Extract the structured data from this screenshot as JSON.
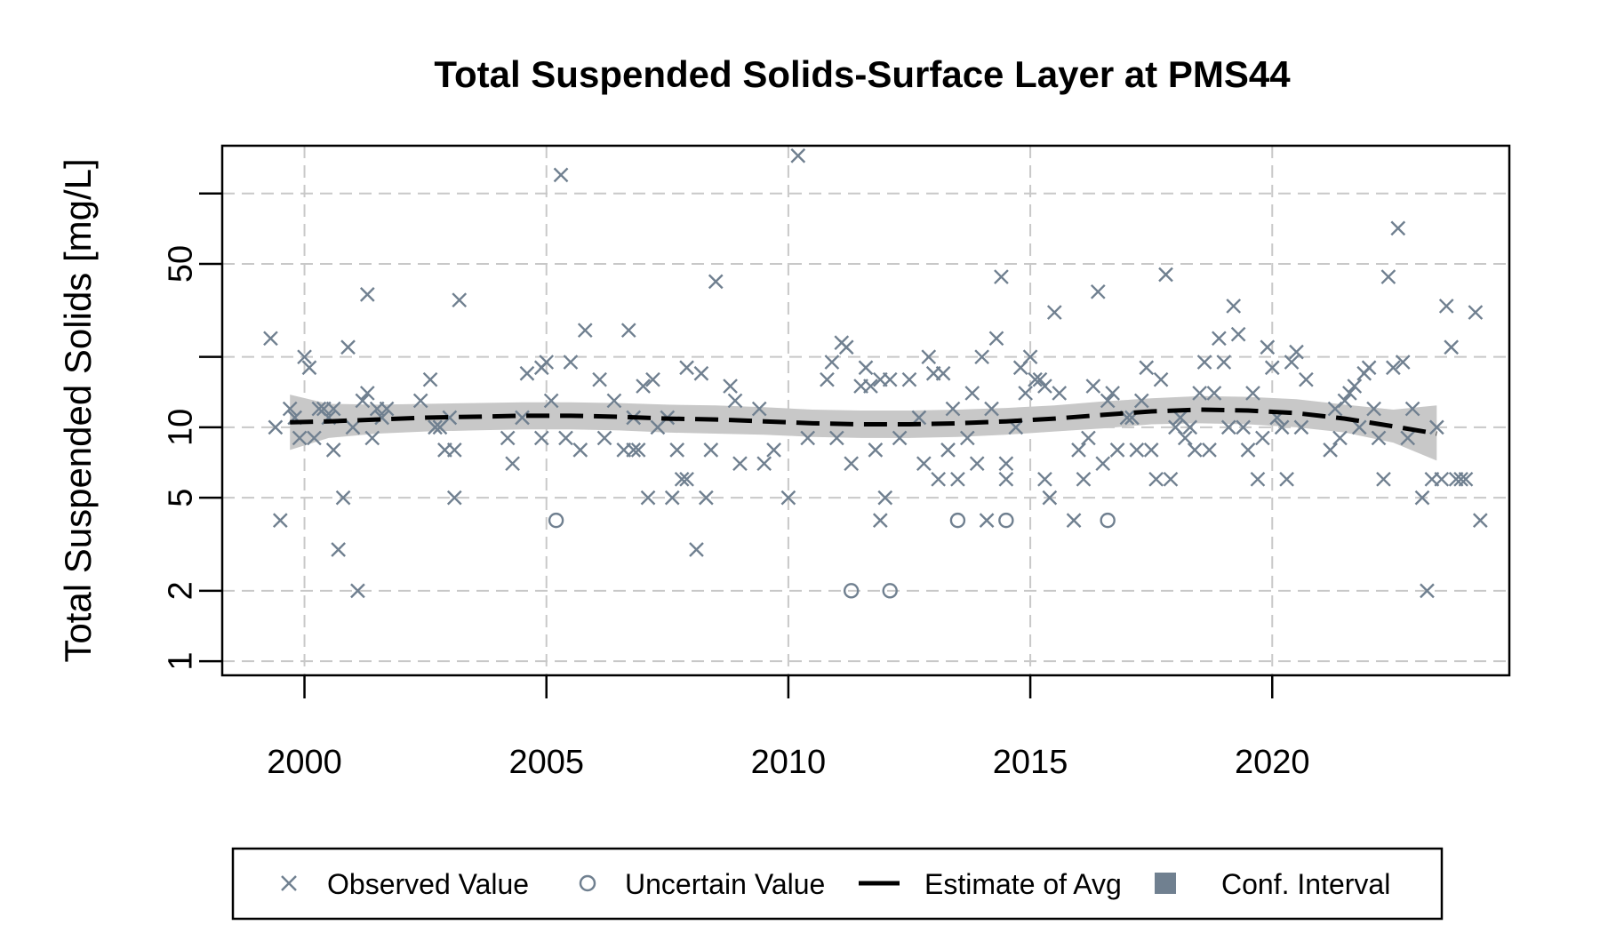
{
  "chart_data": {
    "type": "scatter",
    "title": "Total Suspended Solids-Surface Layer at PMS44",
    "ylabel": "Total Suspended Solids [mg/L]",
    "xlabel": "",
    "y_scale": "log",
    "xlim": [
      1998.3,
      2024.9
    ],
    "ylim": [
      0.87,
      160
    ],
    "x_ticks": [
      2000,
      2005,
      2010,
      2015,
      2020
    ],
    "x_tick_labels": [
      "2000",
      "2005",
      "2010",
      "2015",
      "2020"
    ],
    "y_ticks": [
      1,
      2,
      5,
      10,
      50
    ],
    "y_tick_labels": [
      "1",
      "2",
      "5",
      "10",
      "50"
    ],
    "grid_x": [
      2000,
      2005,
      2010,
      2015,
      2020
    ],
    "grid_y": [
      1,
      2,
      5,
      10,
      20,
      50,
      100
    ],
    "grid": true,
    "legend_position": "bottom",
    "colors": {
      "points": "#708090",
      "estimate": "#000000",
      "conf_interval": "#c8c8c8",
      "legend_ci_swatch": "#708090",
      "grid": "#c8c8c8"
    },
    "legend": [
      {
        "label": "Observed Value",
        "symbol": "x"
      },
      {
        "label": "Uncertain Value",
        "symbol": "circle"
      },
      {
        "label": "Estimate of Avg",
        "symbol": "dashed-line"
      },
      {
        "label": "Conf. Interval",
        "symbol": "filled-square"
      }
    ],
    "series": [
      {
        "name": "Observed Value",
        "marker": "x",
        "points": [
          [
            1999.3,
            24
          ],
          [
            1999.4,
            10
          ],
          [
            1999.5,
            4
          ],
          [
            1999.7,
            12
          ],
          [
            1999.8,
            11
          ],
          [
            1999.9,
            9
          ],
          [
            2000.0,
            20
          ],
          [
            2000.1,
            18
          ],
          [
            2000.2,
            9
          ],
          [
            2000.3,
            12
          ],
          [
            2000.4,
            12
          ],
          [
            2000.5,
            11
          ],
          [
            2000.6,
            12
          ],
          [
            2000.6,
            8
          ],
          [
            2000.7,
            3
          ],
          [
            2000.8,
            5
          ],
          [
            2000.9,
            22
          ],
          [
            2001.0,
            10
          ],
          [
            2001.1,
            2
          ],
          [
            2001.2,
            13
          ],
          [
            2001.3,
            14
          ],
          [
            2001.3,
            37
          ],
          [
            2001.4,
            9
          ],
          [
            2001.5,
            12
          ],
          [
            2001.6,
            11
          ],
          [
            2001.7,
            12
          ],
          [
            2002.4,
            13
          ],
          [
            2002.6,
            16
          ],
          [
            2002.7,
            10
          ],
          [
            2002.8,
            10
          ],
          [
            2002.9,
            8
          ],
          [
            2003.0,
            11
          ],
          [
            2003.1,
            8
          ],
          [
            2003.1,
            5
          ],
          [
            2003.2,
            35
          ],
          [
            2004.2,
            9
          ],
          [
            2004.3,
            7
          ],
          [
            2004.5,
            11
          ],
          [
            2004.6,
            17
          ],
          [
            2004.9,
            18
          ],
          [
            2004.9,
            9
          ],
          [
            2005.0,
            19
          ],
          [
            2005.1,
            13
          ],
          [
            2005.3,
            120
          ],
          [
            2005.4,
            9
          ],
          [
            2005.5,
            19
          ],
          [
            2005.7,
            8
          ],
          [
            2005.8,
            26
          ],
          [
            2006.1,
            16
          ],
          [
            2006.2,
            9
          ],
          [
            2006.4,
            13
          ],
          [
            2006.6,
            8
          ],
          [
            2006.7,
            26
          ],
          [
            2006.8,
            8
          ],
          [
            2006.8,
            11
          ],
          [
            2006.9,
            8
          ],
          [
            2007.0,
            15
          ],
          [
            2007.1,
            5
          ],
          [
            2007.2,
            16
          ],
          [
            2007.3,
            10
          ],
          [
            2007.5,
            11
          ],
          [
            2007.6,
            5
          ],
          [
            2007.7,
            8
          ],
          [
            2007.8,
            6
          ],
          [
            2007.9,
            6
          ],
          [
            2007.9,
            18
          ],
          [
            2008.1,
            3
          ],
          [
            2008.2,
            17
          ],
          [
            2008.3,
            5
          ],
          [
            2008.4,
            8
          ],
          [
            2008.5,
            42
          ],
          [
            2008.8,
            15
          ],
          [
            2008.9,
            13
          ],
          [
            2009.0,
            7
          ],
          [
            2009.4,
            12
          ],
          [
            2009.5,
            7
          ],
          [
            2009.7,
            8
          ],
          [
            2010.0,
            5
          ],
          [
            2010.2,
            145
          ],
          [
            2010.4,
            9
          ],
          [
            2010.8,
            16
          ],
          [
            2010.9,
            19
          ],
          [
            2011.0,
            9
          ],
          [
            2011.1,
            23
          ],
          [
            2011.2,
            22
          ],
          [
            2011.3,
            7
          ],
          [
            2011.5,
            15
          ],
          [
            2011.6,
            18
          ],
          [
            2011.7,
            15
          ],
          [
            2011.8,
            8
          ],
          [
            2011.9,
            4
          ],
          [
            2011.9,
            16
          ],
          [
            2012.0,
            5
          ],
          [
            2012.1,
            16
          ],
          [
            2012.3,
            9
          ],
          [
            2012.5,
            16
          ],
          [
            2012.7,
            11
          ],
          [
            2012.8,
            7
          ],
          [
            2012.9,
            20
          ],
          [
            2013.0,
            17
          ],
          [
            2013.1,
            6
          ],
          [
            2013.2,
            17
          ],
          [
            2013.3,
            8
          ],
          [
            2013.4,
            12
          ],
          [
            2013.5,
            6
          ],
          [
            2013.7,
            9
          ],
          [
            2013.8,
            14
          ],
          [
            2013.9,
            7
          ],
          [
            2014.0,
            20
          ],
          [
            2014.1,
            4
          ],
          [
            2014.2,
            12
          ],
          [
            2014.3,
            24
          ],
          [
            2014.4,
            44
          ],
          [
            2014.5,
            7
          ],
          [
            2014.5,
            6
          ],
          [
            2014.7,
            10
          ],
          [
            2014.8,
            18
          ],
          [
            2014.9,
            14
          ],
          [
            2015.0,
            20
          ],
          [
            2015.1,
            16
          ],
          [
            2015.2,
            16
          ],
          [
            2015.3,
            15
          ],
          [
            2015.3,
            6
          ],
          [
            2015.4,
            5
          ],
          [
            2015.5,
            31
          ],
          [
            2015.6,
            14
          ],
          [
            2015.9,
            4
          ],
          [
            2016.0,
            8
          ],
          [
            2016.1,
            6
          ],
          [
            2016.2,
            9
          ],
          [
            2016.3,
            15
          ],
          [
            2016.4,
            38
          ],
          [
            2016.5,
            7
          ],
          [
            2016.6,
            13
          ],
          [
            2016.7,
            14
          ],
          [
            2016.8,
            8
          ],
          [
            2017.0,
            11
          ],
          [
            2017.1,
            11
          ],
          [
            2017.2,
            8
          ],
          [
            2017.3,
            13
          ],
          [
            2017.4,
            18
          ],
          [
            2017.5,
            8
          ],
          [
            2017.6,
            6
          ],
          [
            2017.7,
            16
          ],
          [
            2017.8,
            45
          ],
          [
            2017.9,
            6
          ],
          [
            2018.0,
            10
          ],
          [
            2018.1,
            11
          ],
          [
            2018.2,
            9
          ],
          [
            2018.3,
            10
          ],
          [
            2018.4,
            8
          ],
          [
            2018.5,
            14
          ],
          [
            2018.6,
            19
          ],
          [
            2018.7,
            8
          ],
          [
            2018.8,
            14
          ],
          [
            2018.9,
            24
          ],
          [
            2019.0,
            19
          ],
          [
            2019.1,
            10
          ],
          [
            2019.2,
            33
          ],
          [
            2019.3,
            25
          ],
          [
            2019.4,
            10
          ],
          [
            2019.5,
            8
          ],
          [
            2019.6,
            14
          ],
          [
            2019.7,
            6
          ],
          [
            2019.8,
            9
          ],
          [
            2019.9,
            22
          ],
          [
            2020.0,
            18
          ],
          [
            2020.1,
            11
          ],
          [
            2020.2,
            10
          ],
          [
            2020.3,
            6
          ],
          [
            2020.4,
            19
          ],
          [
            2020.5,
            21
          ],
          [
            2020.6,
            10
          ],
          [
            2020.7,
            16
          ],
          [
            2021.2,
            8
          ],
          [
            2021.3,
            12
          ],
          [
            2021.4,
            9
          ],
          [
            2021.5,
            13
          ],
          [
            2021.6,
            14
          ],
          [
            2021.7,
            15
          ],
          [
            2021.8,
            10
          ],
          [
            2021.9,
            17
          ],
          [
            2022.0,
            18
          ],
          [
            2022.1,
            12
          ],
          [
            2022.2,
            9
          ],
          [
            2022.3,
            6
          ],
          [
            2022.4,
            44
          ],
          [
            2022.5,
            18
          ],
          [
            2022.6,
            71
          ],
          [
            2022.7,
            19
          ],
          [
            2022.8,
            9
          ],
          [
            2022.9,
            12
          ],
          [
            2023.1,
            5
          ],
          [
            2023.2,
            2
          ],
          [
            2023.3,
            6
          ],
          [
            2023.4,
            10
          ],
          [
            2023.5,
            6
          ],
          [
            2023.6,
            33
          ],
          [
            2023.7,
            22
          ],
          [
            2023.8,
            6
          ],
          [
            2023.9,
            6
          ],
          [
            2024.0,
            6
          ],
          [
            2024.2,
            31
          ],
          [
            2024.3,
            4
          ]
        ]
      },
      {
        "name": "Uncertain Value",
        "marker": "circle",
        "points": [
          [
            2005.2,
            4
          ],
          [
            2011.3,
            2
          ],
          [
            2012.1,
            2
          ],
          [
            2013.5,
            4
          ],
          [
            2014.5,
            4
          ],
          [
            2016.6,
            4
          ]
        ]
      },
      {
        "name": "Estimate of Avg",
        "marker": "dashed-line",
        "x": [
          1999.7,
          2000.5,
          2001.5,
          2002.5,
          2003.5,
          2004.5,
          2005.5,
          2006.5,
          2007.5,
          2008.5,
          2009.5,
          2010.5,
          2011.5,
          2012.5,
          2013.5,
          2014.5,
          2015.5,
          2016.5,
          2017.5,
          2018.5,
          2019.5,
          2020.5,
          2021.5,
          2022.5,
          2023.4
        ],
        "y": [
          10.5,
          10.6,
          10.8,
          11.0,
          11.1,
          11.2,
          11.2,
          11.1,
          10.9,
          10.8,
          10.6,
          10.4,
          10.3,
          10.3,
          10.4,
          10.6,
          10.9,
          11.3,
          11.7,
          11.9,
          11.8,
          11.5,
          10.9,
          10.1,
          9.4
        ]
      },
      {
        "name": "Conf. Interval",
        "marker": "band",
        "x": [
          1999.7,
          2000.5,
          2001.5,
          2002.5,
          2003.5,
          2004.5,
          2005.5,
          2006.5,
          2007.5,
          2008.5,
          2009.5,
          2010.5,
          2011.5,
          2012.5,
          2013.5,
          2014.5,
          2015.5,
          2016.5,
          2017.5,
          2018.5,
          2019.5,
          2020.5,
          2021.5,
          2022.5,
          2023.4
        ],
        "lower": [
          8.0,
          9.0,
          9.4,
          9.6,
          9.7,
          9.8,
          9.8,
          9.7,
          9.5,
          9.4,
          9.3,
          9.1,
          9.0,
          9.0,
          9.1,
          9.3,
          9.6,
          9.9,
          10.3,
          10.4,
          10.3,
          10.0,
          9.5,
          8.6,
          7.2
        ],
        "upper": [
          13.8,
          12.6,
          12.5,
          12.6,
          12.7,
          12.8,
          12.8,
          12.7,
          12.5,
          12.4,
          12.2,
          11.9,
          11.8,
          11.8,
          11.9,
          12.1,
          12.4,
          12.9,
          13.3,
          13.6,
          13.5,
          13.2,
          12.5,
          11.9,
          12.4
        ]
      }
    ]
  }
}
